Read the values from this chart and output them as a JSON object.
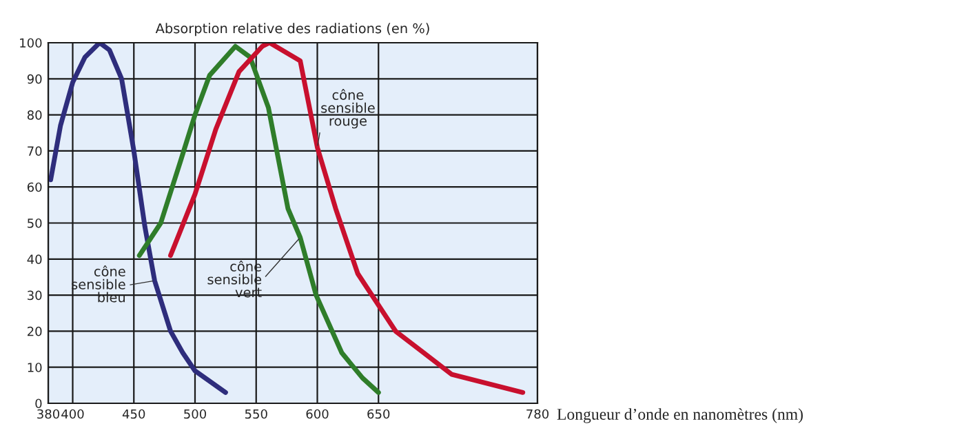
{
  "chart_data": {
    "type": "line",
    "title": "Absorption relative des radiations (en %)",
    "xlabel": "Longueur d’onde en nanomètres (nm)",
    "xlim": [
      380,
      780
    ],
    "xticks": [
      380,
      400,
      450,
      500,
      550,
      600,
      650,
      780
    ],
    "ylim": [
      0,
      100
    ],
    "yticks": [
      0,
      10,
      20,
      30,
      40,
      50,
      60,
      70,
      80,
      90,
      100
    ],
    "grid": true,
    "series": [
      {
        "color": "#2e2d7c",
        "x": [
          382,
          390,
          400,
          410,
          422,
          430,
          440,
          450,
          459,
          467,
          480,
          490,
          500,
          525
        ],
        "values": [
          62,
          77,
          89,
          96,
          100,
          98,
          90,
          70,
          49,
          34,
          20,
          14,
          9,
          3
        ]
      },
      {
        "color": "#2f7d2a",
        "x": [
          454.5,
          472,
          488,
          500,
          512,
          533,
          545,
          560,
          576,
          586,
          599,
          620,
          637,
          650
        ],
        "values": [
          41,
          50,
          67,
          80,
          91,
          99,
          96,
          82,
          54,
          46,
          30,
          14,
          7,
          3
        ]
      },
      {
        "color": "#c8102e",
        "x": [
          480,
          500,
          517,
          536,
          555,
          561,
          586,
          600,
          615,
          633,
          664,
          710,
          768
        ],
        "values": [
          41,
          58,
          76,
          92,
          99,
          100,
          95,
          71,
          54,
          36,
          20,
          8,
          3
        ]
      }
    ],
    "annotations": [
      {
        "text": "cône\nsensible\nbleu",
        "x": 467,
        "y": 34
      },
      {
        "text": "cône\nsensible\nvert",
        "x": 586,
        "y": 46
      },
      {
        "text": "cône\nsensible\nrouge",
        "x": 600,
        "y": 71
      }
    ]
  }
}
